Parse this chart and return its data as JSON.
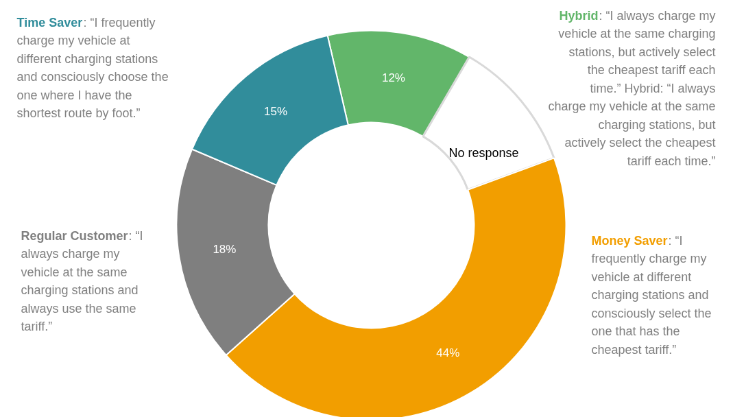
{
  "chart_data": {
    "type": "donut",
    "categories": [
      "Hybrid: “I always charge my vehicle at the same charging stations, but actively select the cheapest tariff each time.” Hybrid: “I always charge my vehicle at the same charging stations, but actively select the cheapest tariff each time.”",
      "No response",
      "Money Saver: “I frequently charge my vehicle at different charging stations and consciously select the one that has the cheapest tariff.”",
      "Regular Customer: “I always charge my vehicle at the same charging stations and always use the same tariff.”",
      "Time Saver: “I frequently charge my vehicle at different charging stations and consciously choose the one where I have the shortest route by foot.”"
    ],
    "values": [
      12,
      11,
      44,
      18,
      15
    ],
    "colors": [
      "#62b66a",
      "#ffffff",
      "#f29e00",
      "#7f7f7f",
      "#318d9b"
    ],
    "value_labels": [
      "12%",
      null,
      "44%",
      "18%",
      "15%"
    ]
  }
}
